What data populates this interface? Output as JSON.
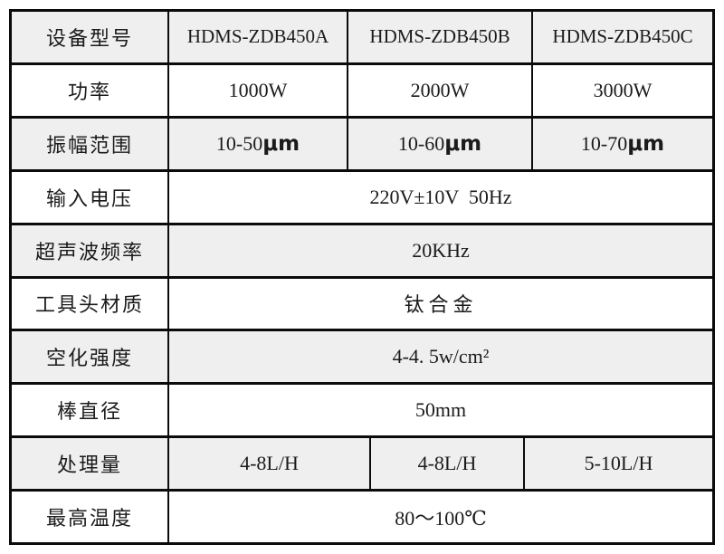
{
  "table": {
    "rows": [
      {
        "label": "设备型号",
        "cells": [
          "HDMS-ZDB450A",
          "HDMS-ZDB450B",
          "HDMS-ZDB450C"
        ]
      },
      {
        "label": "功率",
        "cells": [
          "1000W",
          "2000W",
          "3000W"
        ]
      },
      {
        "label": "振幅范围",
        "values": [
          "10-50",
          "10-60",
          "10-70"
        ],
        "unit": "μm"
      },
      {
        "label": "输入电压",
        "value": "220V±10V  50Hz"
      },
      {
        "label": "超声波频率",
        "value": "20KHz"
      },
      {
        "label": "工具头材质",
        "value": "钛合金"
      },
      {
        "label": "空化强度",
        "value": "4-4. 5w/cm²"
      },
      {
        "label": "棒直径",
        "value": "50mm"
      },
      {
        "label": "处理量",
        "cells": [
          "4-8L/H",
          "4-8L/H",
          "5-10L/H"
        ]
      },
      {
        "label": "最高温度",
        "value": "80～100℃"
      }
    ]
  }
}
